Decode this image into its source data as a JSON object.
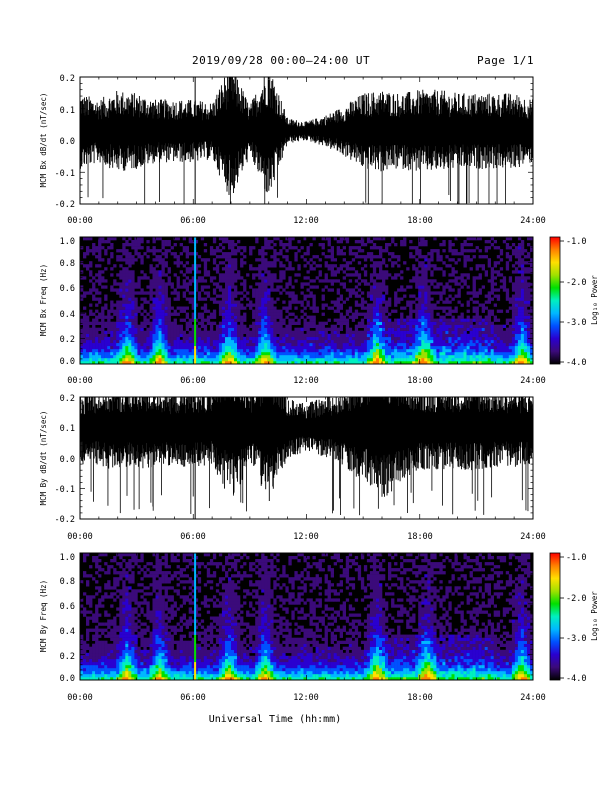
{
  "header": {
    "date_range": "2019/09/28  00:00–24:00 UT",
    "page": "Page 1/1"
  },
  "footer": {
    "xlabel": "Universal Time (hh:mm)"
  },
  "colorbar": {
    "label": "Log₁₀ Power",
    "ticks": [
      "-1.0",
      "-2.0",
      "-3.0",
      "-4.0"
    ],
    "range": [
      -4.0,
      -1.0
    ],
    "colors": [
      "#000000",
      "#3b0a7a",
      "#2a00d0",
      "#0050ff",
      "#00b8ff",
      "#00f0c0",
      "#00e000",
      "#a0e000",
      "#ffe000",
      "#ff8000",
      "#ff0000"
    ]
  },
  "chart_data": [
    {
      "type": "line",
      "ylabel": "MCM Bx dB/dt (nT/sec)",
      "xlim": [
        0,
        24
      ],
      "ylim": [
        -0.2,
        0.2
      ],
      "x_ticks": [
        "00:00",
        "06:00",
        "12:00",
        "18:00",
        "24:00"
      ],
      "y_ticks": [
        "0.2",
        "0.1",
        "0.0",
        "-0.1",
        "-0.2"
      ],
      "baseline": 0.03,
      "activity": [
        {
          "hour": 0,
          "amp": 0.12
        },
        {
          "hour": 1,
          "amp": 0.1
        },
        {
          "hour": 2,
          "amp": 0.13
        },
        {
          "hour": 3,
          "amp": 0.12
        },
        {
          "hour": 4,
          "amp": 0.1
        },
        {
          "hour": 5,
          "amp": 0.1
        },
        {
          "hour": 6,
          "amp": 0.1
        },
        {
          "hour": 7,
          "amp": 0.09
        },
        {
          "hour": 8,
          "amp": 0.22
        },
        {
          "hour": 9,
          "amp": 0.08
        },
        {
          "hour": 10,
          "amp": 0.22
        },
        {
          "hour": 11,
          "amp": 0.04
        },
        {
          "hour": 12,
          "amp": 0.03
        },
        {
          "hour": 13,
          "amp": 0.05
        },
        {
          "hour": 14,
          "amp": 0.08
        },
        {
          "hour": 15,
          "amp": 0.12
        },
        {
          "hour": 16,
          "amp": 0.13
        },
        {
          "hour": 17,
          "amp": 0.12
        },
        {
          "hour": 18,
          "amp": 0.13
        },
        {
          "hour": 19,
          "amp": 0.13
        },
        {
          "hour": 20,
          "amp": 0.12
        },
        {
          "hour": 21,
          "amp": 0.12
        },
        {
          "hour": 22,
          "amp": 0.12
        },
        {
          "hour": 23,
          "amp": 0.12
        },
        {
          "hour": 24,
          "amp": 0.1
        }
      ],
      "spike_hour": 6.1
    },
    {
      "type": "heatmap",
      "ylabel": "MCM Bx Freq (Hz)",
      "xlim": [
        0,
        24
      ],
      "ylim": [
        0.0,
        1.0
      ],
      "x_ticks": [
        "00:00",
        "06:00",
        "12:00",
        "18:00",
        "24:00"
      ],
      "y_ticks": [
        "1.0",
        "0.8",
        "0.6",
        "0.4",
        "0.2",
        "0.0"
      ],
      "z_range": [
        -4.0,
        -1.0
      ],
      "bright_hours": [
        2.5,
        4.2,
        7.9,
        9.8,
        15.7,
        18.2,
        23.4
      ],
      "line_hour": 6.1
    },
    {
      "type": "line",
      "ylabel": "MCM By dB/dt (nT/sec)",
      "xlim": [
        0,
        24
      ],
      "ylim": [
        -0.2,
        0.2
      ],
      "x_ticks": [
        "00:00",
        "06:00",
        "12:00",
        "18:00",
        "24:00"
      ],
      "y_ticks": [
        "0.2",
        "0.1",
        "0.0",
        "-0.1",
        "-0.2"
      ],
      "baseline": 0.1,
      "activity": [
        {
          "hour": 0,
          "amp": 0.12
        },
        {
          "hour": 1,
          "amp": 0.13
        },
        {
          "hour": 2,
          "amp": 0.14
        },
        {
          "hour": 3,
          "amp": 0.13
        },
        {
          "hour": 4,
          "amp": 0.14
        },
        {
          "hour": 5,
          "amp": 0.12
        },
        {
          "hour": 6,
          "amp": 0.14
        },
        {
          "hour": 7,
          "amp": 0.12
        },
        {
          "hour": 8,
          "amp": 0.25
        },
        {
          "hour": 9,
          "amp": 0.12
        },
        {
          "hour": 10,
          "amp": 0.25
        },
        {
          "hour": 11,
          "amp": 0.1
        },
        {
          "hour": 12,
          "amp": 0.08
        },
        {
          "hour": 13,
          "amp": 0.1
        },
        {
          "hour": 14,
          "amp": 0.13
        },
        {
          "hour": 15,
          "amp": 0.18
        },
        {
          "hour": 16,
          "amp": 0.25
        },
        {
          "hour": 17,
          "amp": 0.18
        },
        {
          "hour": 18,
          "amp": 0.14
        },
        {
          "hour": 19,
          "amp": 0.14
        },
        {
          "hour": 20,
          "amp": 0.14
        },
        {
          "hour": 21,
          "amp": 0.14
        },
        {
          "hour": 22,
          "amp": 0.13
        },
        {
          "hour": 23,
          "amp": 0.13
        },
        {
          "hour": 24,
          "amp": 0.12
        }
      ],
      "spike_hour": 6.1
    },
    {
      "type": "heatmap",
      "ylabel": "MCM By Freq (Hz)",
      "xlim": [
        0,
        24
      ],
      "ylim": [
        0.0,
        1.0
      ],
      "x_ticks": [
        "00:00",
        "06:00",
        "12:00",
        "18:00",
        "24:00"
      ],
      "y_ticks": [
        "1.0",
        "0.8",
        "0.6",
        "0.4",
        "0.2",
        "0.0"
      ],
      "z_range": [
        -4.0,
        -1.0
      ],
      "bright_hours": [
        2.5,
        4.2,
        7.9,
        9.8,
        15.7,
        18.4,
        23.4
      ],
      "line_hour": 6.1
    }
  ]
}
